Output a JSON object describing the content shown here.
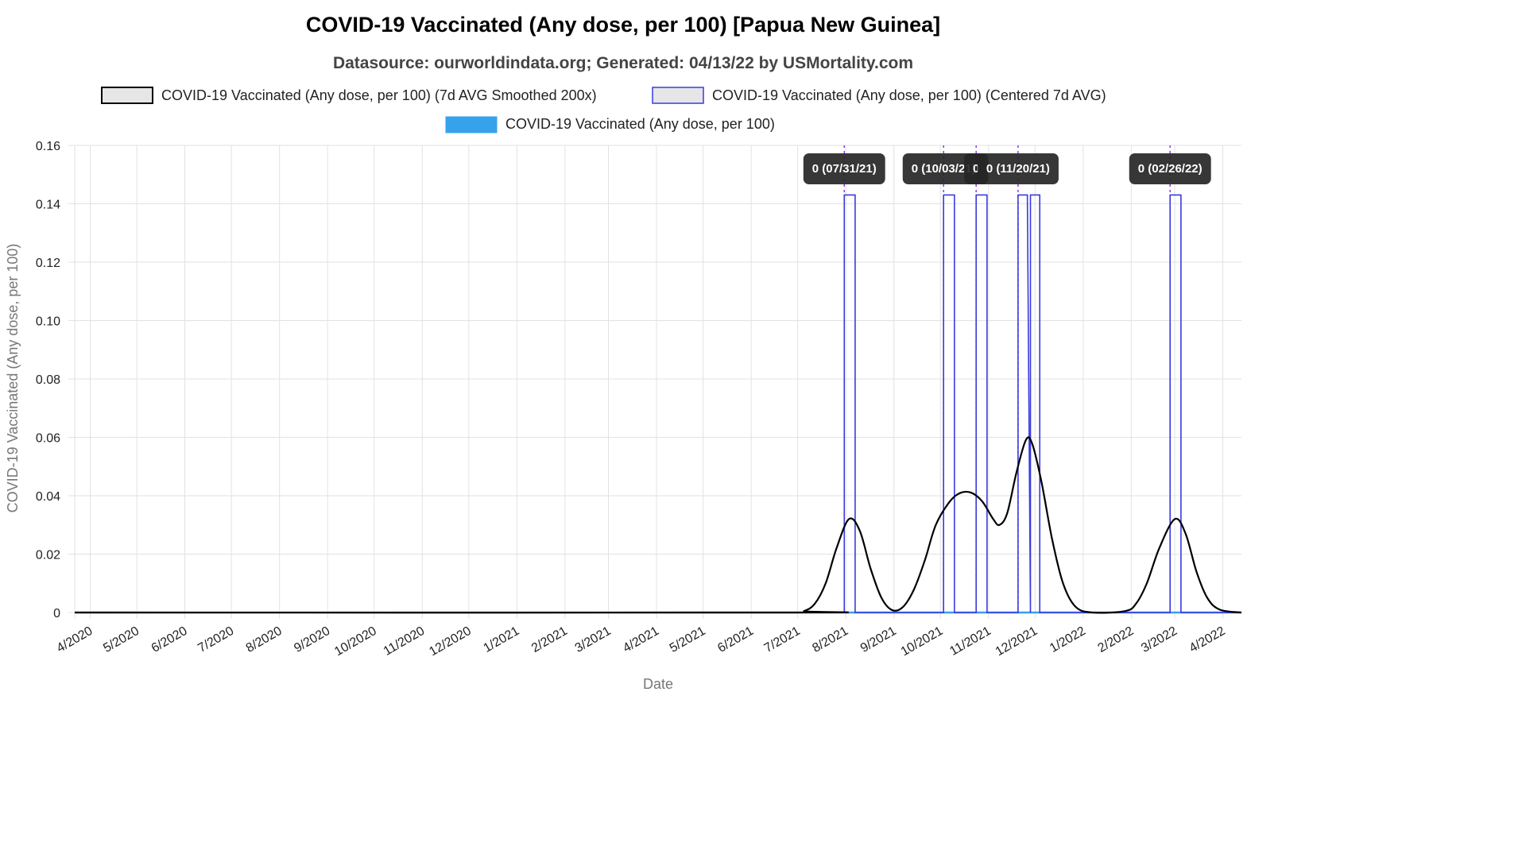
{
  "chart_data": {
    "type": "line",
    "title": "COVID-19 Vaccinated (Any dose, per 100) [Papua New Guinea]",
    "subtitle": "Datasource: ourworldindata.org; Generated: 04/13/22 by USMortality.com",
    "xlabel": "Date",
    "ylabel": "COVID-19 Vaccinated (Any dose, per 100)",
    "ylim": [
      0,
      0.16
    ],
    "yticks": [
      "0",
      "0.02",
      "0.04",
      "0.06",
      "0.08",
      "0.10",
      "0.12",
      "0.14",
      "0.16"
    ],
    "xlim": [
      "2020-03-22",
      "2022-04-13"
    ],
    "xticks": [
      {
        "label": "4/2020",
        "date": "2020-04-01"
      },
      {
        "label": "5/2020",
        "date": "2020-05-01"
      },
      {
        "label": "6/2020",
        "date": "2020-06-01"
      },
      {
        "label": "7/2020",
        "date": "2020-07-01"
      },
      {
        "label": "8/2020",
        "date": "2020-08-01"
      },
      {
        "label": "9/2020",
        "date": "2020-09-01"
      },
      {
        "label": "10/2020",
        "date": "2020-10-01"
      },
      {
        "label": "11/2020",
        "date": "2020-11-01"
      },
      {
        "label": "12/2020",
        "date": "2020-12-01"
      },
      {
        "label": "1/2021",
        "date": "2021-01-01"
      },
      {
        "label": "2/2021",
        "date": "2021-02-01"
      },
      {
        "label": "3/2021",
        "date": "2021-03-01"
      },
      {
        "label": "4/2021",
        "date": "2021-04-01"
      },
      {
        "label": "5/2021",
        "date": "2021-05-01"
      },
      {
        "label": "6/2021",
        "date": "2021-06-01"
      },
      {
        "label": "7/2021",
        "date": "2021-07-01"
      },
      {
        "label": "8/2021",
        "date": "2021-08-01"
      },
      {
        "label": "9/2021",
        "date": "2021-09-01"
      },
      {
        "label": "10/2021",
        "date": "2021-10-01"
      },
      {
        "label": "11/2021",
        "date": "2021-11-01"
      },
      {
        "label": "12/2021",
        "date": "2021-12-01"
      },
      {
        "label": "1/2022",
        "date": "2022-01-01"
      },
      {
        "label": "2/2022",
        "date": "2022-02-01"
      },
      {
        "label": "3/2022",
        "date": "2022-03-01"
      },
      {
        "label": "4/2022",
        "date": "2022-04-01"
      }
    ],
    "grid": true,
    "legend_position": "top-center",
    "series": [
      {
        "name": "COVID-19 Vaccinated (Any dose, per 100) (7d AVG Smoothed 200x)",
        "color": "#000000",
        "style": "smooth-line",
        "points": [
          {
            "x": "2020-03-22",
            "y": 0
          },
          {
            "x": "2021-06-27",
            "y": 0
          },
          {
            "x": "2021-07-05",
            "y": 0.0005
          },
          {
            "x": "2021-07-12",
            "y": 0.003
          },
          {
            "x": "2021-07-19",
            "y": 0.01
          },
          {
            "x": "2021-07-26",
            "y": 0.022
          },
          {
            "x": "2021-08-03",
            "y": 0.032
          },
          {
            "x": "2021-08-10",
            "y": 0.028
          },
          {
            "x": "2021-08-17",
            "y": 0.015
          },
          {
            "x": "2021-08-24",
            "y": 0.005
          },
          {
            "x": "2021-08-31",
            "y": 0.0008
          },
          {
            "x": "2021-09-07",
            "y": 0.002
          },
          {
            "x": "2021-09-14",
            "y": 0.008
          },
          {
            "x": "2021-09-21",
            "y": 0.018
          },
          {
            "x": "2021-09-28",
            "y": 0.03
          },
          {
            "x": "2021-10-07",
            "y": 0.038
          },
          {
            "x": "2021-10-14",
            "y": 0.041
          },
          {
            "x": "2021-10-21",
            "y": 0.041
          },
          {
            "x": "2021-10-28",
            "y": 0.038
          },
          {
            "x": "2021-11-04",
            "y": 0.032
          },
          {
            "x": "2021-11-08",
            "y": 0.03
          },
          {
            "x": "2021-11-13",
            "y": 0.034
          },
          {
            "x": "2021-11-19",
            "y": 0.048
          },
          {
            "x": "2021-11-25",
            "y": 0.059
          },
          {
            "x": "2021-11-29",
            "y": 0.058
          },
          {
            "x": "2021-12-05",
            "y": 0.045
          },
          {
            "x": "2021-12-12",
            "y": 0.025
          },
          {
            "x": "2021-12-19",
            "y": 0.01
          },
          {
            "x": "2021-12-27",
            "y": 0.002
          },
          {
            "x": "2022-01-07",
            "y": 0
          },
          {
            "x": "2022-01-28",
            "y": 0.0005
          },
          {
            "x": "2022-02-04",
            "y": 0.003
          },
          {
            "x": "2022-02-11",
            "y": 0.01
          },
          {
            "x": "2022-02-19",
            "y": 0.022
          },
          {
            "x": "2022-03-01",
            "y": 0.032
          },
          {
            "x": "2022-03-08",
            "y": 0.027
          },
          {
            "x": "2022-03-15",
            "y": 0.014
          },
          {
            "x": "2022-03-22",
            "y": 0.005
          },
          {
            "x": "2022-03-30",
            "y": 0.001
          },
          {
            "x": "2022-04-13",
            "y": 0
          }
        ]
      },
      {
        "name": "COVID-19 Vaccinated (Any dose, per 100) (Centered 7d AVG)",
        "color": "#3a3ae0",
        "style": "step-line",
        "points": [
          {
            "x": "2020-03-22",
            "y": 0
          },
          {
            "x": "2021-07-31",
            "y": 0
          },
          {
            "x": "2021-07-31",
            "y": 0.143
          },
          {
            "x": "2021-08-07",
            "y": 0.143
          },
          {
            "x": "2021-08-07",
            "y": 0
          },
          {
            "x": "2021-10-03",
            "y": 0
          },
          {
            "x": "2021-10-03",
            "y": 0.143
          },
          {
            "x": "2021-10-10",
            "y": 0.143
          },
          {
            "x": "2021-10-10",
            "y": 0
          },
          {
            "x": "2021-10-24",
            "y": 0
          },
          {
            "x": "2021-10-24",
            "y": 0.143
          },
          {
            "x": "2021-10-31",
            "y": 0.143
          },
          {
            "x": "2021-10-31",
            "y": 0
          },
          {
            "x": "2021-11-20",
            "y": 0
          },
          {
            "x": "2021-11-20",
            "y": 0.143
          },
          {
            "x": "2021-11-26",
            "y": 0.143
          },
          {
            "x": "2021-11-28",
            "y": 0
          },
          {
            "x": "2021-11-28",
            "y": 0.143
          },
          {
            "x": "2021-12-04",
            "y": 0.143
          },
          {
            "x": "2021-12-04",
            "y": 0
          },
          {
            "x": "2022-02-26",
            "y": 0
          },
          {
            "x": "2022-02-26",
            "y": 0.143
          },
          {
            "x": "2022-03-05",
            "y": 0.143
          },
          {
            "x": "2022-03-05",
            "y": 0
          },
          {
            "x": "2022-04-13",
            "y": 0
          }
        ]
      },
      {
        "name": "COVID-19 Vaccinated (Any dose, per 100)",
        "color": "#36a2eb",
        "style": "bar-line",
        "points": [
          {
            "x": "2020-03-22",
            "y": 0
          },
          {
            "x": "2022-04-13",
            "y": 0
          }
        ]
      }
    ],
    "annotations": [
      {
        "date": "2021-07-31",
        "label": "0 (07/31/21)"
      },
      {
        "date": "2021-10-03",
        "label": "0 (10/03/21)"
      },
      {
        "date": "2021-10-24",
        "label": "0"
      },
      {
        "date": "2021-11-20",
        "label": "0 (11/20/21)"
      },
      {
        "date": "2022-02-26",
        "label": "0 (02/26/22)"
      }
    ]
  }
}
